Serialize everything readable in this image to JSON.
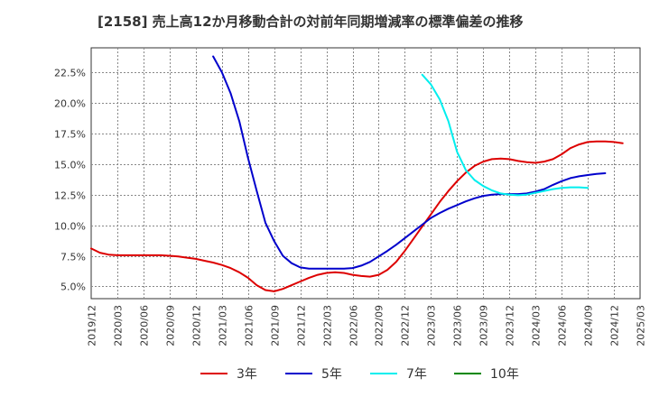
{
  "title": "[2158]  売上高12か月移動合計の対前年同期増減率の標準偏差の推移",
  "chart_data": {
    "type": "line",
    "title": "[2158]  売上高12か月移動合計の対前年同期増減率の標準偏差の推移",
    "xlabel": "",
    "ylabel": "",
    "x_ticks": [
      "2019/12",
      "2020/03",
      "2020/06",
      "2020/09",
      "2020/12",
      "2021/03",
      "2021/06",
      "2021/09",
      "2021/12",
      "2022/03",
      "2022/06",
      "2022/09",
      "2022/12",
      "2023/03",
      "2023/06",
      "2023/09",
      "2023/12",
      "2024/03",
      "2024/06",
      "2024/09",
      "2024/12",
      "2025/03"
    ],
    "y_ticks": [
      "5.0%",
      "7.5%",
      "10.0%",
      "12.5%",
      "15.0%",
      "17.5%",
      "20.0%",
      "22.5%"
    ],
    "y_tick_values": [
      5.0,
      7.5,
      10.0,
      12.5,
      15.0,
      17.5,
      20.0,
      22.5
    ],
    "ylim": [
      4.0,
      24.5
    ],
    "x_range_months": [
      0,
      63
    ],
    "grid": true,
    "legend_position": "bottom",
    "series": [
      {
        "name": "3年",
        "color": "#dd0000",
        "points": [
          [
            0,
            8.1
          ],
          [
            1,
            7.75
          ],
          [
            2,
            7.6
          ],
          [
            3,
            7.55
          ],
          [
            4,
            7.55
          ],
          [
            5,
            7.55
          ],
          [
            6,
            7.55
          ],
          [
            7,
            7.55
          ],
          [
            8,
            7.55
          ],
          [
            9,
            7.5
          ],
          [
            10,
            7.45
          ],
          [
            11,
            7.35
          ],
          [
            12,
            7.25
          ],
          [
            13,
            7.1
          ],
          [
            14,
            6.95
          ],
          [
            15,
            6.75
          ],
          [
            16,
            6.5
          ],
          [
            17,
            6.15
          ],
          [
            18,
            5.7
          ],
          [
            19,
            5.1
          ],
          [
            20,
            4.7
          ],
          [
            21,
            4.6
          ],
          [
            22,
            4.8
          ],
          [
            23,
            5.1
          ],
          [
            24,
            5.4
          ],
          [
            25,
            5.7
          ],
          [
            26,
            5.95
          ],
          [
            27,
            6.1
          ],
          [
            28,
            6.15
          ],
          [
            29,
            6.1
          ],
          [
            30,
            5.95
          ],
          [
            31,
            5.85
          ],
          [
            32,
            5.8
          ],
          [
            33,
            5.95
          ],
          [
            34,
            6.35
          ],
          [
            35,
            7.0
          ],
          [
            36,
            7.9
          ],
          [
            37,
            8.9
          ],
          [
            38,
            9.9
          ],
          [
            39,
            10.9
          ],
          [
            40,
            11.9
          ],
          [
            41,
            12.8
          ],
          [
            42,
            13.6
          ],
          [
            43,
            14.3
          ],
          [
            44,
            14.85
          ],
          [
            45,
            15.2
          ],
          [
            46,
            15.4
          ],
          [
            47,
            15.45
          ],
          [
            48,
            15.4
          ],
          [
            49,
            15.25
          ],
          [
            50,
            15.15
          ],
          [
            51,
            15.1
          ],
          [
            52,
            15.2
          ],
          [
            53,
            15.4
          ],
          [
            54,
            15.8
          ],
          [
            55,
            16.3
          ],
          [
            56,
            16.6
          ],
          [
            57,
            16.8
          ],
          [
            58,
            16.85
          ],
          [
            59,
            16.85
          ],
          [
            60,
            16.8
          ],
          [
            61,
            16.7
          ]
        ]
      },
      {
        "name": "5年",
        "color": "#0000cc",
        "points": [
          [
            14,
            23.8
          ],
          [
            15,
            22.5
          ],
          [
            16,
            20.8
          ],
          [
            17,
            18.5
          ],
          [
            18,
            15.5
          ],
          [
            19,
            12.8
          ],
          [
            20,
            10.2
          ],
          [
            21,
            8.7
          ],
          [
            22,
            7.5
          ],
          [
            23,
            6.9
          ],
          [
            24,
            6.55
          ],
          [
            25,
            6.45
          ],
          [
            26,
            6.45
          ],
          [
            27,
            6.45
          ],
          [
            28,
            6.45
          ],
          [
            29,
            6.45
          ],
          [
            30,
            6.5
          ],
          [
            31,
            6.7
          ],
          [
            32,
            7.0
          ],
          [
            33,
            7.45
          ],
          [
            34,
            7.9
          ],
          [
            35,
            8.4
          ],
          [
            36,
            8.95
          ],
          [
            37,
            9.5
          ],
          [
            38,
            10.05
          ],
          [
            39,
            10.6
          ],
          [
            40,
            11.0
          ],
          [
            41,
            11.35
          ],
          [
            42,
            11.65
          ],
          [
            43,
            11.95
          ],
          [
            44,
            12.2
          ],
          [
            45,
            12.4
          ],
          [
            46,
            12.5
          ],
          [
            47,
            12.55
          ],
          [
            48,
            12.55
          ],
          [
            49,
            12.55
          ],
          [
            50,
            12.6
          ],
          [
            51,
            12.75
          ],
          [
            52,
            12.95
          ],
          [
            53,
            13.3
          ],
          [
            54,
            13.6
          ],
          [
            55,
            13.85
          ],
          [
            56,
            14.0
          ],
          [
            57,
            14.1
          ],
          [
            58,
            14.2
          ],
          [
            59,
            14.25
          ]
        ]
      },
      {
        "name": "7年",
        "color": "#00eeee",
        "points": [
          [
            38,
            22.3
          ],
          [
            39,
            21.5
          ],
          [
            40,
            20.3
          ],
          [
            41,
            18.5
          ],
          [
            42,
            16.0
          ],
          [
            43,
            14.5
          ],
          [
            44,
            13.7
          ],
          [
            45,
            13.2
          ],
          [
            46,
            12.85
          ],
          [
            47,
            12.6
          ],
          [
            48,
            12.5
          ],
          [
            49,
            12.45
          ],
          [
            50,
            12.5
          ],
          [
            51,
            12.65
          ],
          [
            52,
            12.8
          ],
          [
            53,
            12.95
          ],
          [
            54,
            13.05
          ],
          [
            55,
            13.1
          ],
          [
            56,
            13.1
          ],
          [
            57,
            13.05
          ]
        ]
      },
      {
        "name": "10年",
        "color": "#008800",
        "points": []
      }
    ]
  }
}
